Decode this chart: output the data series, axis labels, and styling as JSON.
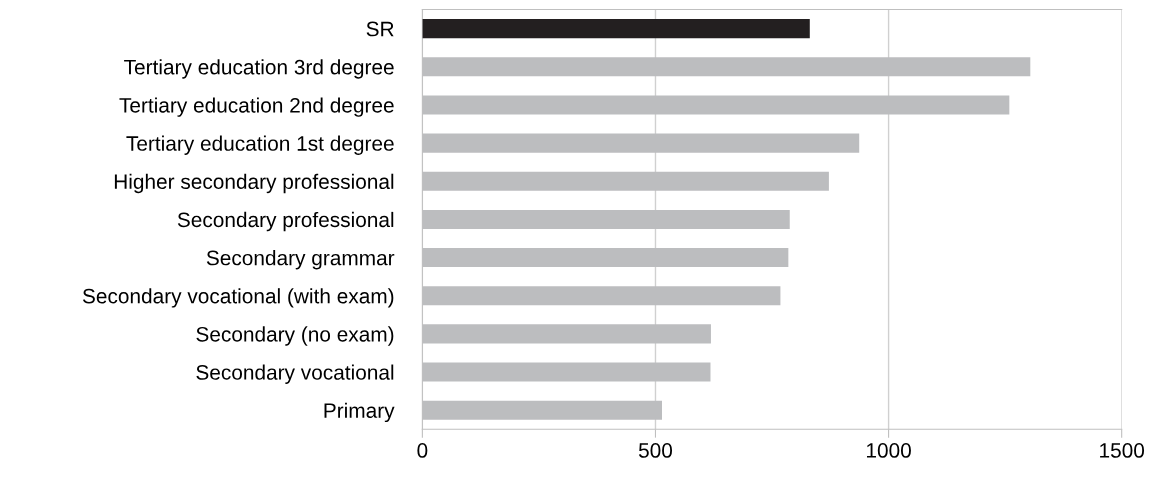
{
  "chart_data": {
    "type": "bar",
    "orientation": "horizontal",
    "categories": [
      "SR",
      "Tertiary education 3rd degree",
      "Tertiary education 2nd degree",
      "Tertiary education 1st degree",
      "Higher secondary professional",
      "Secondary professional",
      "Secondary grammar",
      "Secondary vocational (with exam)",
      "Secondary (no exam)",
      "Secondary vocational",
      "Primary"
    ],
    "values": [
      831,
      1304,
      1259,
      937,
      872,
      788,
      785,
      768,
      619,
      618,
      514
    ],
    "colors": [
      "#231f20",
      "#bcbdbf",
      "#bcbdbf",
      "#bcbdbf",
      "#bcbdbf",
      "#bcbdbf",
      "#bcbdbf",
      "#bcbdbf",
      "#bcbdbf",
      "#bcbdbf",
      "#bcbdbf"
    ],
    "xlim": [
      0,
      1500
    ],
    "xticks": [
      0,
      500,
      1000,
      1500
    ],
    "grid": "x"
  }
}
